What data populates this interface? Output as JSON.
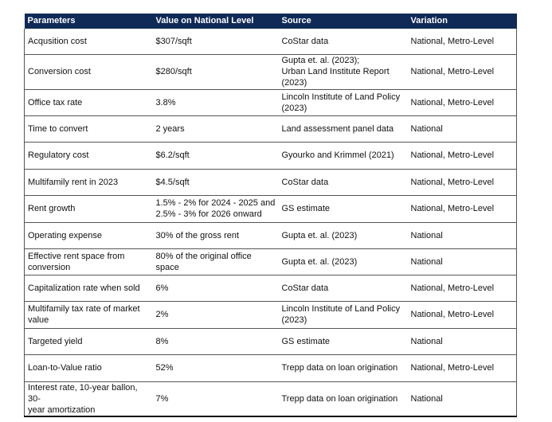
{
  "table": {
    "headers": [
      "Parameters",
      "Value on National Level",
      "Source",
      "Variation"
    ],
    "rows": [
      {
        "parameter": "Acqusition cost",
        "value": "$307/sqft",
        "source": "CoStar data",
        "variation": "National, Metro-Level"
      },
      {
        "parameter": "Conversion cost",
        "value": "$280/sqft",
        "source": "Gupta et. al. (2023);\nUrban Land Institute Report\n(2023)",
        "variation": "National, Metro-Level"
      },
      {
        "parameter": "Office tax rate",
        "value": "3.8%",
        "source": "Lincoln Institute of Land Policy\n(2023)",
        "variation": "National, Metro-Level"
      },
      {
        "parameter": "Time to convert",
        "value": "2 years",
        "source": "Land assessment panel data",
        "variation": "National"
      },
      {
        "parameter": "Regulatory cost",
        "value": "$6.2/sqft",
        "source": "Gyourko and Krimmel (2021)",
        "variation": "National, Metro-Level"
      },
      {
        "parameter": "Multifamily rent in 2023",
        "value": "$4.5/sqft",
        "source": "CoStar data",
        "variation": "National, Metro-Level"
      },
      {
        "parameter": "Rent growth",
        "value": "1.5% - 2% for 2024 - 2025 and\n2.5% - 3% for 2026 onward",
        "source": "GS estimate",
        "variation": "National, Metro-Level"
      },
      {
        "parameter": "Operating expense",
        "value": "30% of the gross rent",
        "source": "Gupta et. al. (2023)",
        "variation": "National"
      },
      {
        "parameter": "Effective rent space from\nconversion",
        "value": "80% of the original office\nspace",
        "source": "Gupta et. al. (2023)",
        "variation": "National"
      },
      {
        "parameter": "Capitalization rate when sold",
        "value": "6%",
        "source": "CoStar data",
        "variation": "National, Metro-Level"
      },
      {
        "parameter": "Multifamily tax rate of market\nvalue",
        "value": "2%",
        "source": "Lincoln Institute of Land Policy\n(2023)",
        "variation": "National, Metro-Level"
      },
      {
        "parameter": "Targeted yield",
        "value": "8%",
        "source": "GS estimate",
        "variation": "National"
      },
      {
        "parameter": "Loan-to-Value ratio",
        "value": "52%",
        "source": "Trepp data on loan origination",
        "variation": "National, Metro-Level"
      },
      {
        "parameter": "Interest rate, 10-year ballon, 30-\nyear amortization",
        "value": "7%",
        "source": "Trepp data on loan origination",
        "variation": "National"
      }
    ]
  }
}
